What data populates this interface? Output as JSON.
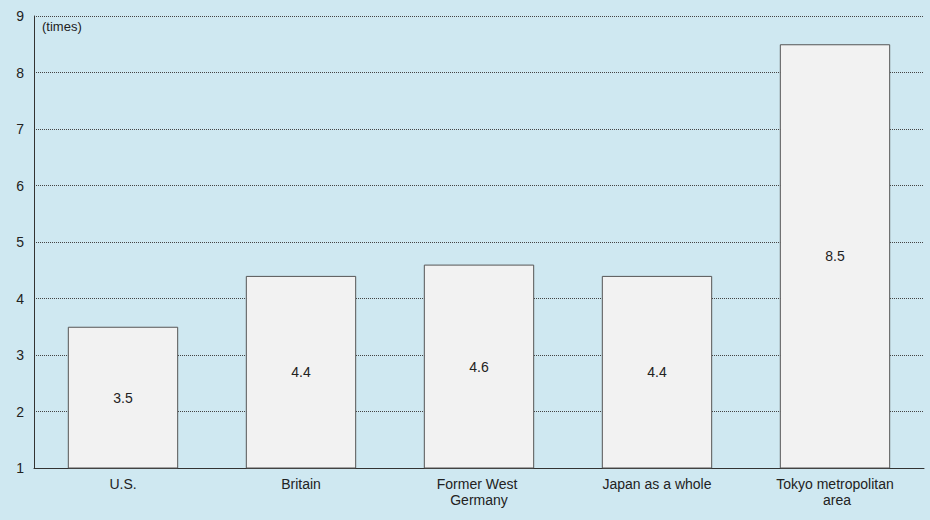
{
  "chart_data": {
    "type": "bar",
    "y_label": "(times)",
    "categories": [
      "U.S.",
      "Britain",
      "Former West Germany",
      "Japan as a whole",
      "Tokyo metropolitan area"
    ],
    "values": [
      3.5,
      4.4,
      4.6,
      4.4,
      8.5
    ],
    "color": "#f2f2f2",
    "ylim": [
      1,
      9
    ],
    "yticks": [
      1,
      2,
      3,
      4,
      5,
      6,
      7,
      8,
      9
    ],
    "grid": true,
    "data_labels": true
  }
}
